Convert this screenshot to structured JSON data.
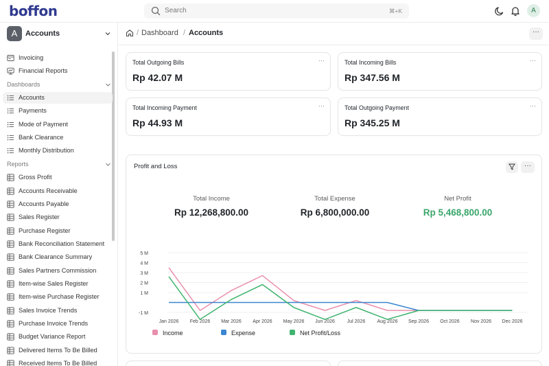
{
  "app": {
    "logo_text": "boffon"
  },
  "topbar": {
    "search_placeholder": "Search",
    "search_shortcut": "⌘+K",
    "avatar_initial": "A",
    "icons": [
      "moon-icon",
      "bell-icon"
    ]
  },
  "sidebar": {
    "workspace": {
      "initial": "A",
      "name": "Accounts"
    },
    "top_items": [
      {
        "label": "Invoicing",
        "icon": "invoice-icon"
      },
      {
        "label": "Financial Reports",
        "icon": "report-icon"
      }
    ],
    "sections": [
      {
        "label": "Dashboards",
        "items": [
          {
            "label": "Accounts",
            "icon": "list-icon",
            "active": true
          },
          {
            "label": "Payments",
            "icon": "list-icon"
          },
          {
            "label": "Mode of Payment",
            "icon": "list-icon"
          },
          {
            "label": "Bank Clearance",
            "icon": "list-icon"
          },
          {
            "label": "Monthly Distribution",
            "icon": "list-icon"
          }
        ]
      },
      {
        "label": "Reports",
        "items": [
          {
            "label": "Gross Profit",
            "icon": "table-icon"
          },
          {
            "label": "Accounts Receivable",
            "icon": "table-icon"
          },
          {
            "label": "Accounts Payable",
            "icon": "table-icon"
          },
          {
            "label": "Sales Register",
            "icon": "table-icon"
          },
          {
            "label": "Purchase Register",
            "icon": "table-icon"
          },
          {
            "label": "Bank Reconciliation Statement",
            "icon": "table-icon"
          },
          {
            "label": "Bank Clearance Summary",
            "icon": "table-icon"
          },
          {
            "label": "Sales Partners Commission",
            "icon": "table-icon"
          },
          {
            "label": "Item-wise Sales Register",
            "icon": "table-icon"
          },
          {
            "label": "Item-wise Purchase Register",
            "icon": "table-icon"
          },
          {
            "label": "Sales Invoice Trends",
            "icon": "table-icon"
          },
          {
            "label": "Purchase Invoice Trends",
            "icon": "table-icon"
          },
          {
            "label": "Budget Variance Report",
            "icon": "table-icon"
          },
          {
            "label": "Delivered Items To Be Billed",
            "icon": "table-icon"
          },
          {
            "label": "Received Items To Be Billed",
            "icon": "table-icon"
          }
        ]
      }
    ]
  },
  "breadcrumb": {
    "sep": "/",
    "parent": "Dashboard",
    "current": "Accounts"
  },
  "more_label": "···",
  "cards": [
    {
      "title": "Total Outgoing Bills",
      "value": "Rp 42.07 M"
    },
    {
      "title": "Total Incoming Bills",
      "value": "Rp 347.56 M"
    },
    {
      "title": "Total Incoming Payment",
      "value": "Rp 44.93 M"
    },
    {
      "title": "Total Outgoing Payment",
      "value": "Rp 345.25 M"
    }
  ],
  "profit_loss": {
    "title": "Profit and Loss",
    "stats": [
      {
        "label": "Total Income",
        "value": "Rp 12,268,800.00"
      },
      {
        "label": "Total Expense",
        "value": "Rp 6,800,000.00"
      },
      {
        "label": "Net Profit",
        "value": "Rp 5,468,800.00"
      }
    ]
  },
  "colors": {
    "income": "#e98fae",
    "expense": "#3a86d0",
    "net": "#3fb46e",
    "net_profit_text": "#3aa66a"
  },
  "chart_data": {
    "type": "line",
    "x": [
      "Jan 2026",
      "Feb 2026",
      "Mar 2026",
      "Apr 2026",
      "May 2026",
      "Jun 2026",
      "Jul 2026",
      "Aug 2026",
      "Sep 2026",
      "Oct 2026",
      "Nov 2026",
      "Dec 2026"
    ],
    "y_ticks": [
      {
        "value": 5,
        "label": "5 M"
      },
      {
        "value": 4,
        "label": "4 M"
      },
      {
        "value": 3,
        "label": "3 M"
      },
      {
        "value": 2,
        "label": "2 M"
      },
      {
        "value": 1,
        "label": "1 M"
      },
      {
        "value": -1,
        "label": "-1 M"
      }
    ],
    "ylim": [
      -1,
      5
    ],
    "grid": true,
    "legend": "bottom-left",
    "series": [
      {
        "name": "Income",
        "color": "#e98fae",
        "values": [
          3.5,
          -0.8,
          1.2,
          2.7,
          0.2,
          -0.8,
          0.2,
          -0.8,
          -0.8,
          -0.8,
          -0.8,
          -0.8
        ]
      },
      {
        "name": "Expense",
        "color": "#3a86d0",
        "values": [
          0.0,
          0.0,
          0.0,
          0.0,
          0.0,
          0.0,
          0.0,
          0.0,
          -0.8,
          -0.8,
          -0.8,
          -0.8
        ]
      },
      {
        "name": "Net Profit/Loss",
        "color": "#3fb46e",
        "values": [
          2.6,
          -1.7,
          0.3,
          1.8,
          -0.5,
          -1.7,
          -0.5,
          -1.7,
          -0.8,
          -0.8,
          -0.8,
          -0.8
        ]
      }
    ]
  }
}
